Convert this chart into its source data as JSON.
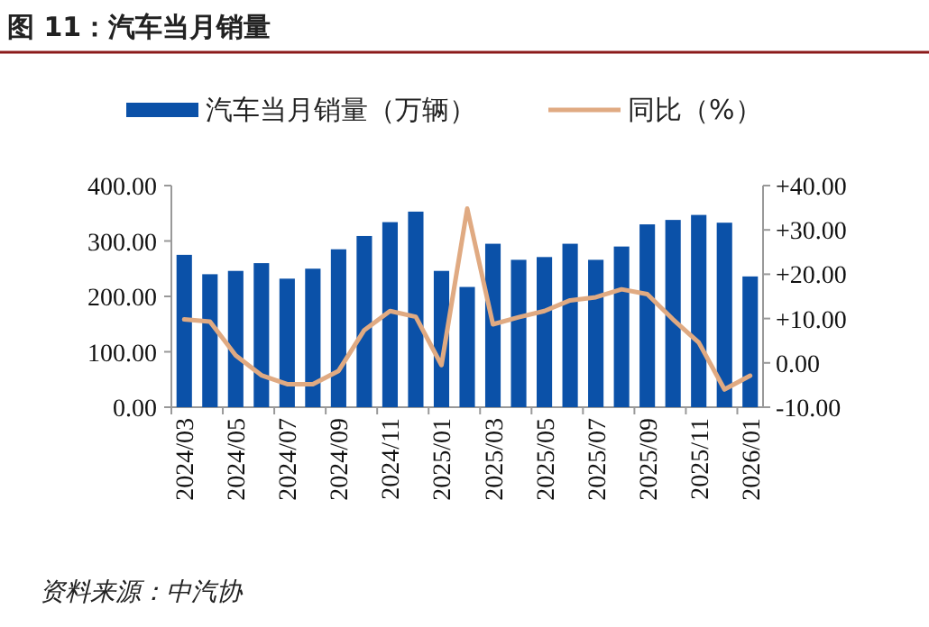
{
  "chart_data": {
    "type": "bar",
    "title": "图 11：汽车当月销量",
    "categories": [
      "2024/03",
      null,
      "2024/05",
      null,
      "2024/07",
      null,
      "2024/09",
      null,
      "2024/11",
      null,
      "2025/01",
      null,
      "2025/03",
      null,
      "2025/05",
      null,
      "2025/07",
      null,
      "2025/09",
      null,
      "2025/11",
      null,
      "2026/01"
    ],
    "series": [
      {
        "name": "汽车当月销量（万辆）",
        "color": "#0b51a8",
        "values": [
          275,
          240,
          246,
          260,
          232,
          250,
          285,
          309,
          334,
          353,
          246,
          217,
          295,
          266,
          271,
          295,
          266,
          290,
          330,
          338,
          347,
          333,
          236
        ]
      },
      {
        "name": "同比（%）",
        "type": "line",
        "axis": "y2",
        "color": "#e0aa82",
        "values": [
          9.8,
          9.3,
          1.7,
          -2.8,
          -4.8,
          -4.8,
          -1.8,
          7.4,
          11.7,
          10.4,
          -0.5,
          34.8,
          8.7,
          10.3,
          11.7,
          14.1,
          14.8,
          16.6,
          15.5,
          9.8,
          4.6,
          -6.0,
          -2.9
        ]
      }
    ],
    "ylim": [
      0,
      400
    ],
    "yticks": [
      {
        "value": 0,
        "label": "0.00"
      },
      {
        "value": 100,
        "label": "100.00"
      },
      {
        "value": 200,
        "label": "200.00"
      },
      {
        "value": 300,
        "label": "300.00"
      },
      {
        "value": 400,
        "label": "400.00"
      }
    ],
    "y2lim": [
      -10,
      40
    ],
    "y2ticks": [
      {
        "value": -10,
        "label": "-10.00"
      },
      {
        "value": 0,
        "label": "0.00"
      },
      {
        "value": 10,
        "label": "+10.00"
      },
      {
        "value": 20,
        "label": "+20.00"
      },
      {
        "value": 30,
        "label": "+30.00"
      },
      {
        "value": 40,
        "label": "+40.00"
      }
    ],
    "legend": "top",
    "grid": false,
    "annotations": [
      "资料来源：中汽协"
    ]
  }
}
